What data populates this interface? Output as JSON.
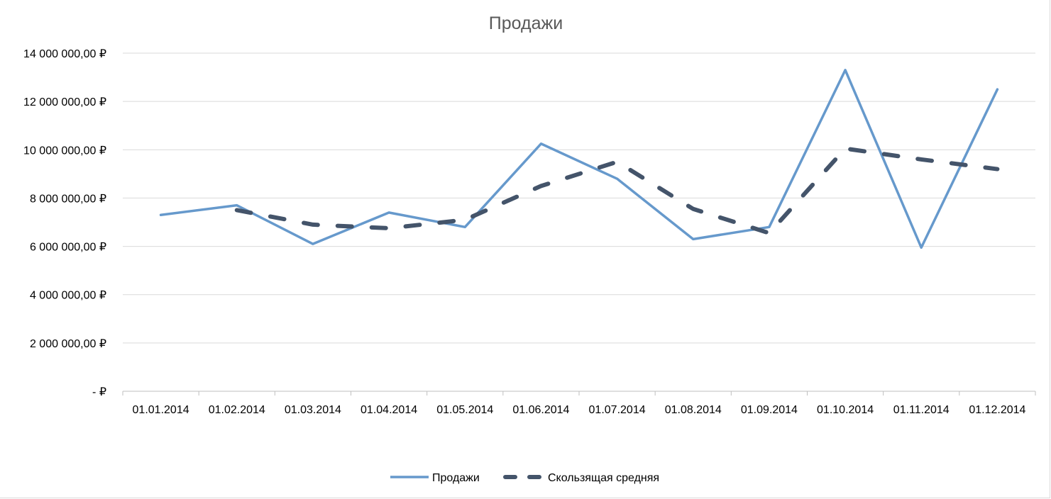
{
  "chart_data": {
    "type": "line",
    "title": "Продажи",
    "xlabel": "",
    "ylabel": "",
    "categories": [
      "01.01.2014",
      "01.02.2014",
      "01.03.2014",
      "01.04.2014",
      "01.05.2014",
      "01.06.2014",
      "01.07.2014",
      "01.08.2014",
      "01.09.2014",
      "01.10.2014",
      "01.11.2014",
      "01.12.2014"
    ],
    "ylim": [
      0,
      14000000
    ],
    "yticks": [
      {
        "value": 14000000,
        "label": "14 000 000,00 ₽"
      },
      {
        "value": 12000000,
        "label": "12 000 000,00 ₽"
      },
      {
        "value": 10000000,
        "label": "10 000 000,00 ₽"
      },
      {
        "value": 8000000,
        "label": "8 000 000,00 ₽"
      },
      {
        "value": 6000000,
        "label": "6 000 000,00 ₽"
      },
      {
        "value": 4000000,
        "label": "4 000 000,00 ₽"
      },
      {
        "value": 2000000,
        "label": "2 000 000,00 ₽"
      },
      {
        "value": 0,
        "label": "- ₽"
      }
    ],
    "grid": true,
    "legend_position": "bottom",
    "series": [
      {
        "name": "Продажи",
        "color": "#6699cc",
        "style": "solid",
        "values": [
          7300000,
          7700000,
          6100000,
          7400000,
          6800000,
          10250000,
          8800000,
          6300000,
          6800000,
          13300000,
          5950000,
          12500000
        ]
      },
      {
        "name": "Скользящая средняя",
        "color": "#44546a",
        "style": "dashed",
        "values": [
          null,
          7500000,
          6900000,
          6750000,
          7100000,
          8500000,
          9500000,
          7550000,
          6550000,
          10050000,
          9600000,
          9200000
        ]
      }
    ]
  }
}
